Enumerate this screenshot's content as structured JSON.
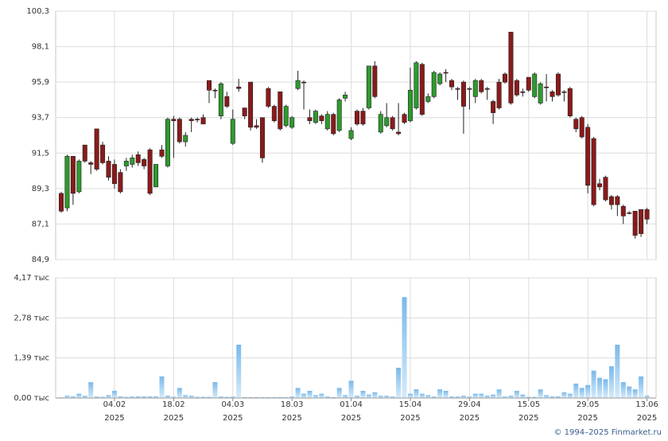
{
  "chart_data": [
    {
      "type": "candlestick",
      "up_color": "#2e9a2e",
      "down_color": "#8b1a1a",
      "ylim": [
        84.9,
        100.3
      ],
      "yticks": [
        {
          "value": 84.9,
          "label": "84,9"
        },
        {
          "value": 87.1,
          "label": "87,1"
        },
        {
          "value": 89.3,
          "label": "89,3"
        },
        {
          "value": 91.5,
          "label": "91,5"
        },
        {
          "value": 93.7,
          "label": "93,7"
        },
        {
          "value": 95.9,
          "label": "95,9"
        },
        {
          "value": 98.1,
          "label": "98,1"
        },
        {
          "value": 100.3,
          "label": "100,3"
        }
      ],
      "grid": true,
      "open": [
        89.0,
        88.1,
        91.3,
        89.1,
        92.0,
        90.9,
        93.0,
        92.0,
        91.0,
        90.8,
        90.3,
        90.7,
        90.8,
        91.4,
        91.1,
        91.7,
        89.4,
        91.7,
        90.7,
        93.6,
        93.6,
        92.2,
        93.6,
        93.6,
        93.7,
        96.0,
        95.4,
        93.8,
        95.0,
        92.1,
        95.6,
        94.3,
        95.9,
        93.2,
        93.7,
        95.5,
        94.4,
        95.3,
        93.2,
        93.1,
        95.5,
        95.9,
        93.7,
        93.4,
        93.8,
        93.0,
        93.9,
        92.9,
        94.9,
        92.4,
        94.1,
        94.1,
        94.3,
        96.9,
        92.8,
        93.2,
        93.7,
        92.8,
        93.9,
        93.5,
        94.3,
        97.0,
        94.7,
        95.0,
        95.8,
        96.5,
        96.0,
        95.5,
        95.9,
        95.5,
        95.0,
        96.0,
        95.5,
        94.7,
        95.9,
        96.4,
        99.0,
        96.0,
        95.3,
        96.2,
        95.0,
        94.6,
        95.6,
        95.3,
        96.4,
        95.3,
        95.5,
        93.6,
        93.7,
        93.1,
        92.4,
        89.6,
        90.0,
        88.8,
        88.8,
        88.2,
        87.8,
        87.9,
        88.0,
        88.0
      ],
      "high": [
        89.1,
        91.4,
        91.3,
        91.1,
        92.0,
        91.0,
        93.0,
        92.2,
        91.3,
        91.1,
        90.5,
        91.2,
        91.4,
        91.6,
        91.2,
        91.8,
        90.8,
        92.0,
        93.7,
        93.8,
        93.7,
        92.8,
        93.7,
        93.7,
        93.9,
        96.0,
        95.5,
        95.9,
        95.3,
        94.2,
        96.1,
        94.3,
        95.9,
        93.6,
        93.7,
        95.6,
        94.5,
        95.3,
        94.5,
        93.8,
        96.6,
        96.0,
        94.2,
        94.2,
        93.9,
        94.1,
        94.0,
        94.9,
        95.3,
        93.1,
        94.2,
        94.3,
        96.9,
        97.2,
        94.1,
        94.6,
        93.8,
        94.6,
        94.0,
        96.8,
        97.2,
        97.1,
        95.2,
        96.6,
        96.5,
        96.7,
        96.1,
        95.6,
        96.0,
        95.6,
        96.1,
        96.1,
        95.6,
        94.8,
        96.1,
        96.5,
        99.0,
        96.1,
        95.5,
        96.2,
        96.5,
        95.9,
        96.4,
        95.4,
        96.5,
        95.4,
        95.6,
        93.7,
        93.8,
        93.3,
        92.5,
        89.9,
        90.1,
        88.9,
        88.9,
        88.3,
        87.9,
        87.9,
        88.0,
        88.1
      ],
      "low": [
        87.8,
        87.9,
        88.3,
        89.0,
        90.9,
        90.2,
        90.4,
        90.8,
        89.8,
        89.3,
        89.0,
        90.4,
        90.6,
        90.7,
        90.5,
        88.9,
        89.4,
        91.2,
        90.6,
        91.2,
        92.1,
        91.9,
        92.8,
        93.4,
        93.3,
        94.6,
        94.9,
        93.6,
        94.3,
        92.0,
        95.3,
        93.6,
        92.9,
        93.0,
        90.9,
        94.3,
        93.4,
        92.9,
        93.1,
        93.0,
        95.4,
        94.2,
        93.3,
        93.3,
        93.3,
        92.9,
        92.6,
        92.8,
        94.7,
        92.3,
        93.2,
        93.2,
        94.2,
        94.9,
        92.7,
        93.1,
        92.9,
        92.6,
        93.3,
        93.4,
        94.2,
        93.8,
        94.6,
        94.9,
        95.7,
        95.9,
        95.4,
        94.8,
        92.7,
        94.2,
        94.6,
        95.2,
        94.8,
        93.3,
        94.2,
        95.8,
        94.5,
        95.0,
        95.0,
        95.3,
        94.9,
        94.5,
        94.7,
        94.7,
        95.0,
        94.7,
        93.7,
        92.8,
        92.4,
        89.0,
        88.2,
        89.2,
        88.5,
        88.0,
        87.6,
        87.1,
        87.7,
        86.2,
        86.3,
        87.1
      ],
      "close": [
        87.9,
        91.3,
        89.0,
        91.0,
        91.0,
        90.8,
        90.5,
        90.9,
        90.0,
        89.6,
        89.1,
        91.0,
        91.2,
        90.9,
        90.7,
        89.0,
        90.8,
        91.3,
        93.6,
        93.5,
        92.2,
        92.6,
        93.5,
        93.55,
        93.3,
        95.4,
        95.35,
        95.8,
        94.4,
        93.6,
        95.5,
        93.8,
        93.1,
        93.1,
        91.2,
        94.4,
        93.5,
        93.0,
        94.4,
        93.7,
        96.0,
        95.85,
        93.5,
        94.1,
        93.5,
        93.9,
        92.7,
        94.8,
        95.1,
        92.9,
        93.3,
        93.3,
        96.9,
        95.0,
        93.9,
        93.7,
        93.0,
        92.7,
        93.4,
        95.4,
        97.1,
        93.9,
        95.0,
        96.5,
        96.4,
        96.45,
        95.6,
        95.45,
        94.4,
        95.45,
        96.0,
        95.3,
        95.45,
        94.0,
        94.3,
        95.9,
        94.6,
        95.1,
        95.25,
        95.4,
        96.4,
        95.8,
        95.55,
        95.0,
        95.1,
        95.25,
        93.8,
        93.0,
        92.5,
        89.5,
        88.3,
        89.4,
        88.6,
        88.3,
        88.3,
        87.6,
        87.75,
        86.4,
        86.5,
        87.4
      ]
    },
    {
      "type": "bar",
      "color": "#8cc4ee",
      "ylim": [
        0,
        4.17
      ],
      "yticks": [
        {
          "value": 0,
          "label": "0,00 тыс"
        },
        {
          "value": 1.39,
          "label": "1,39 тыс"
        },
        {
          "value": 2.78,
          "label": "2,78 тыс"
        },
        {
          "value": 4.17,
          "label": "4,17 тыс"
        }
      ],
      "grid": true,
      "categories": [
        null,
        null,
        null,
        null,
        null,
        null,
        null,
        null,
        null,
        "04.02",
        null,
        null,
        null,
        null,
        null,
        null,
        null,
        null,
        null,
        "18.02",
        null,
        null,
        null,
        null,
        null,
        null,
        null,
        null,
        null,
        "04.03",
        null,
        null,
        null,
        null,
        null,
        null,
        null,
        null,
        null,
        "18.03",
        null,
        null,
        null,
        null,
        null,
        null,
        null,
        null,
        null,
        "01.04",
        null,
        null,
        null,
        null,
        null,
        null,
        null,
        null,
        null,
        "15.04",
        null,
        null,
        null,
        null,
        null,
        null,
        null,
        null,
        null,
        "29.04",
        null,
        null,
        null,
        null,
        null,
        null,
        null,
        null,
        null,
        "15.05",
        null,
        null,
        null,
        null,
        null,
        null,
        null,
        null,
        null,
        "29.05",
        null,
        null,
        null,
        null,
        null,
        null,
        null,
        null,
        null,
        "13.06"
      ],
      "categories_second_line": [
        null,
        null,
        null,
        null,
        null,
        null,
        null,
        null,
        null,
        "2025",
        null,
        null,
        null,
        null,
        null,
        null,
        null,
        null,
        null,
        "2025",
        null,
        null,
        null,
        null,
        null,
        null,
        null,
        null,
        null,
        "2025",
        null,
        null,
        null,
        null,
        null,
        null,
        null,
        null,
        null,
        "2025",
        null,
        null,
        null,
        null,
        null,
        null,
        null,
        null,
        null,
        "2025",
        null,
        null,
        null,
        null,
        null,
        null,
        null,
        null,
        null,
        "2025",
        null,
        null,
        null,
        null,
        null,
        null,
        null,
        null,
        null,
        "2025",
        null,
        null,
        null,
        null,
        null,
        null,
        null,
        null,
        null,
        "2025",
        null,
        null,
        null,
        null,
        null,
        null,
        null,
        null,
        null,
        "2025",
        null,
        null,
        null,
        null,
        null,
        null,
        null,
        null,
        null,
        "2025"
      ],
      "values": [
        0.02,
        0.08,
        0.06,
        0.15,
        0.08,
        0.55,
        0.05,
        0.04,
        0.1,
        0.25,
        0.06,
        0.04,
        0.05,
        0.06,
        0.06,
        0.06,
        0.06,
        0.75,
        0.08,
        0.04,
        0.35,
        0.1,
        0.08,
        0.04,
        0.04,
        0.04,
        0.55,
        0.05,
        0.04,
        0.05,
        1.85,
        0.03,
        0.03,
        0.03,
        0.03,
        0.03,
        0.03,
        0.03,
        0.03,
        0.05,
        0.35,
        0.15,
        0.25,
        0.1,
        0.15,
        0.05,
        0.03,
        0.35,
        0.1,
        0.6,
        0.08,
        0.25,
        0.12,
        0.2,
        0.08,
        0.08,
        0.05,
        1.05,
        3.5,
        0.15,
        0.3,
        0.15,
        0.1,
        0.05,
        0.3,
        0.25,
        0.05,
        0.05,
        0.08,
        0.05,
        0.15,
        0.15,
        0.08,
        0.12,
        0.3,
        0.05,
        0.08,
        0.25,
        0.12,
        0.04,
        0.04,
        0.3,
        0.1,
        0.06,
        0.06,
        0.2,
        0.15,
        0.5,
        0.35,
        0.45,
        0.95,
        0.7,
        0.65,
        1.1,
        1.85,
        0.55,
        0.4,
        0.3,
        0.75,
        0.08
      ]
    }
  ],
  "source": "© 1994–2025 Finmarket.ru"
}
